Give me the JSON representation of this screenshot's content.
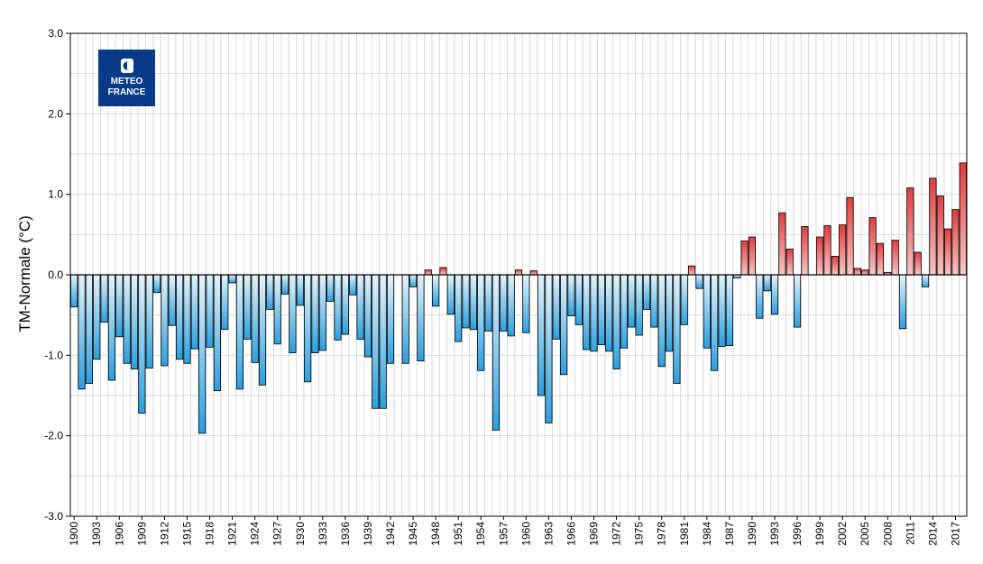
{
  "chart_data": {
    "type": "bar",
    "title": "",
    "xlabel": "",
    "ylabel": "TM-Normale (°C)",
    "ylim": [
      -3.0,
      3.0
    ],
    "yticks": [
      "3.0",
      "2.0",
      "1.0",
      "0.0",
      "-1.0",
      "-2.0",
      "-3.0"
    ],
    "grid": true,
    "legend": "none",
    "colors": {
      "negative_top": "#e4f4fb",
      "negative_bottom": "#2a9fe0",
      "positive_top": "#f7c6c6",
      "positive_bottom": "#e23c3c",
      "bar_stroke": "#000000",
      "grid": "#d9d9d9"
    },
    "logo": {
      "line1": "METEO",
      "line2": "FRANCE",
      "color": "#073b87"
    },
    "x_tick_labels": [
      "1900",
      "1903",
      "1906",
      "1909",
      "1912",
      "1915",
      "1918",
      "1921",
      "1924",
      "1927",
      "1930",
      "1933",
      "1936",
      "1939",
      "1942",
      "1945",
      "1948",
      "1951",
      "1954",
      "1957",
      "1960",
      "1963",
      "1966",
      "1969",
      "1972",
      "1975",
      "1978",
      "1981",
      "1984",
      "1987",
      "1990",
      "1993",
      "1996",
      "1999",
      "2002",
      "2005",
      "2008",
      "2011",
      "2014",
      "2017"
    ],
    "categories": [
      "1900",
      "1901",
      "1902",
      "1903",
      "1904",
      "1905",
      "1906",
      "1907",
      "1908",
      "1909",
      "1910",
      "1911",
      "1912",
      "1913",
      "1914",
      "1915",
      "1916",
      "1917",
      "1918",
      "1919",
      "1920",
      "1921",
      "1922",
      "1923",
      "1924",
      "1925",
      "1926",
      "1927",
      "1928",
      "1929",
      "1930",
      "1931",
      "1932",
      "1933",
      "1934",
      "1935",
      "1936",
      "1937",
      "1938",
      "1939",
      "1940",
      "1941",
      "1942",
      "1943",
      "1944",
      "1945",
      "1946",
      "1947",
      "1948",
      "1949",
      "1950",
      "1951",
      "1952",
      "1953",
      "1954",
      "1955",
      "1956",
      "1957",
      "1958",
      "1959",
      "1960",
      "1961",
      "1962",
      "1963",
      "1964",
      "1965",
      "1966",
      "1967",
      "1968",
      "1969",
      "1970",
      "1971",
      "1972",
      "1973",
      "1974",
      "1975",
      "1976",
      "1977",
      "1978",
      "1979",
      "1980",
      "1981",
      "1982",
      "1983",
      "1984",
      "1985",
      "1986",
      "1987",
      "1988",
      "1989",
      "1990",
      "1991",
      "1992",
      "1993",
      "1994",
      "1995",
      "1996",
      "1997",
      "1998",
      "1999",
      "2000",
      "2001",
      "2002",
      "2003",
      "2004",
      "2005",
      "2006",
      "2007",
      "2008",
      "2009",
      "2010",
      "2011",
      "2012",
      "2013",
      "2014",
      "2015",
      "2016",
      "2017",
      "2018"
    ],
    "values": [
      -0.4,
      -1.42,
      -1.35,
      -1.05,
      -0.59,
      -1.31,
      -0.77,
      -1.1,
      -1.17,
      -1.72,
      -1.16,
      -0.22,
      -1.13,
      -0.63,
      -1.05,
      -1.1,
      -0.92,
      -1.97,
      -0.9,
      -1.44,
      -0.68,
      -0.1,
      -1.42,
      -0.8,
      -1.09,
      -1.37,
      -0.43,
      -0.86,
      -0.24,
      -0.97,
      -0.38,
      -1.33,
      -0.97,
      -0.94,
      -0.33,
      -0.81,
      -0.74,
      -0.25,
      -0.8,
      -1.02,
      -1.66,
      -1.66,
      -1.1,
      0.0,
      -1.1,
      -0.15,
      -1.07,
      0.06,
      -0.39,
      0.09,
      -0.49,
      -0.83,
      -0.66,
      -0.68,
      -1.19,
      -0.7,
      -1.93,
      -0.7,
      -0.76,
      0.06,
      -0.72,
      0.05,
      -1.5,
      -1.84,
      -0.8,
      -1.24,
      -0.51,
      -0.62,
      -0.93,
      -0.95,
      -0.87,
      -0.95,
      -1.17,
      -0.91,
      -0.65,
      -0.75,
      -0.43,
      -0.65,
      -1.14,
      -0.95,
      -1.35,
      -0.62,
      0.11,
      -0.17,
      -0.91,
      -1.19,
      -0.89,
      -0.88,
      -0.04,
      0.42,
      0.47,
      -0.54,
      -0.2,
      -0.49,
      0.77,
      0.32,
      -0.65,
      0.6,
      0.0,
      0.47,
      0.61,
      0.23,
      0.62,
      0.96,
      0.08,
      0.06,
      0.71,
      0.39,
      0.03,
      0.43,
      -0.67,
      1.08,
      0.28,
      -0.15,
      1.2,
      0.98,
      0.57,
      0.81,
      1.39
    ]
  }
}
